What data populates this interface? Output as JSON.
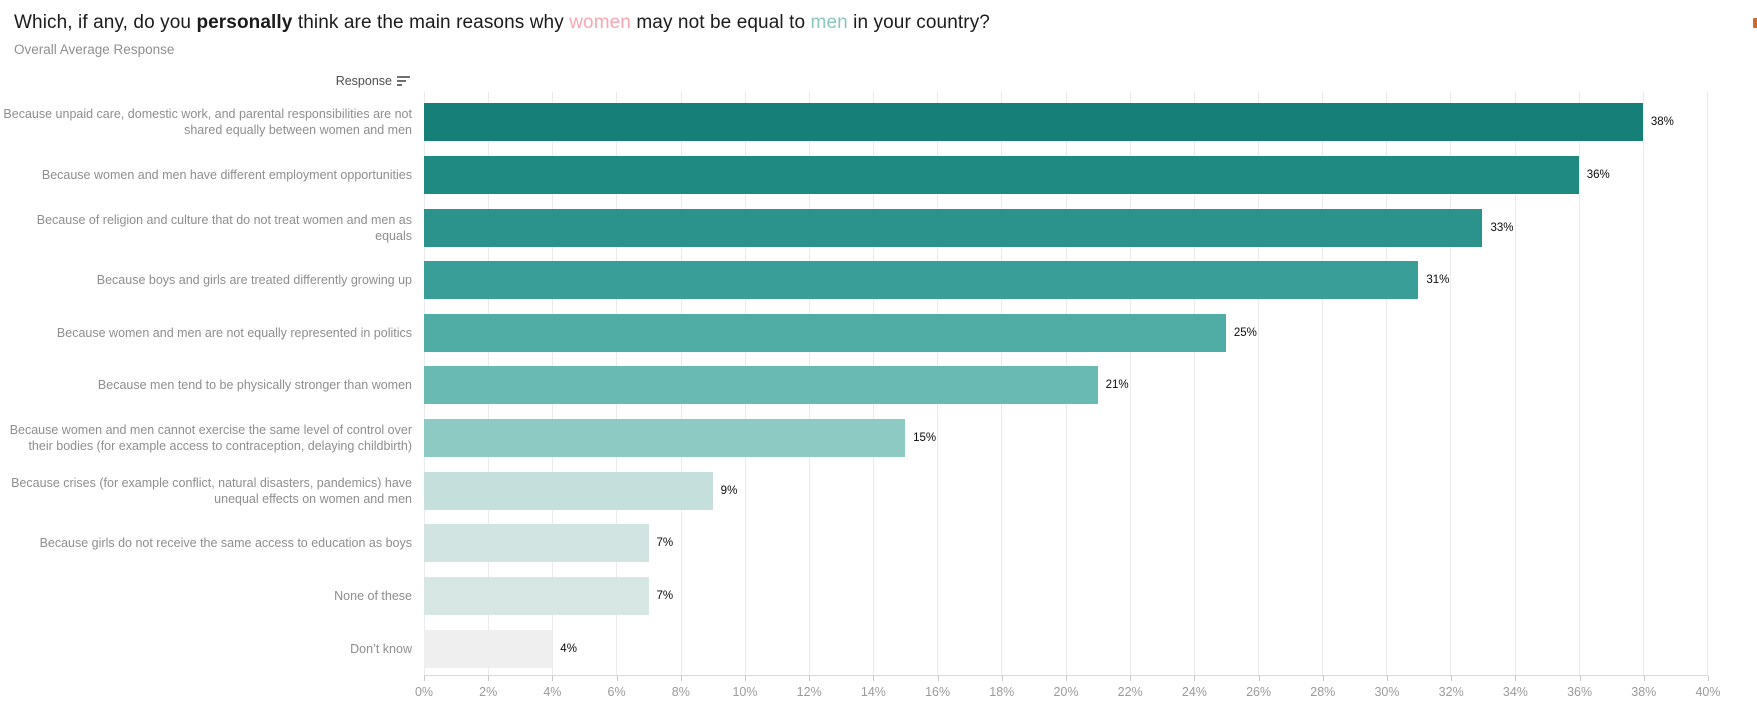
{
  "title": {
    "part1": "Which, if any, do you ",
    "personally": "personally",
    "part2": " think are the main reasons why ",
    "women": "women",
    "part3": " may not be equal to ",
    "men": "men",
    "part4": " in your country?"
  },
  "subtitle": "Overall Average Response",
  "column_header": {
    "label": "Response"
  },
  "chart_data": {
    "type": "bar",
    "orientation": "horizontal",
    "title": "Which, if any, do you personally think are the main reasons why women may not be equal to men in your country?",
    "subtitle": "Overall Average Response",
    "ylabel": "Response",
    "xlabel": "",
    "xlim": [
      0,
      40
    ],
    "x_ticks": [
      "0%",
      "2%",
      "4%",
      "6%",
      "8%",
      "10%",
      "12%",
      "14%",
      "16%",
      "18%",
      "20%",
      "22%",
      "24%",
      "26%",
      "28%",
      "30%",
      "32%",
      "34%",
      "36%",
      "38%",
      "40%"
    ],
    "grid": "vertical gridlines every 2%",
    "legend": "none",
    "categories": [
      "Because unpaid care, domestic work, and parental responsibilities are not shared equally between women and men",
      "Because women and men have different employment opportunities",
      "Because of religion and culture that do not treat women and men as equals",
      "Because boys and girls are treated differently growing up",
      "Because women and men are not equally represented in politics",
      "Because men tend to be physically stronger than women",
      "Because women and men cannot exercise the same level of control over their bodies (for example access to contraception, delaying childbirth)",
      "Because crises (for example conflict, natural disasters, pandemics) have unequal effects on women and men",
      "Because girls do not receive the same access to education as boys",
      "None of these",
      "Don’t know"
    ],
    "values": [
      38,
      36,
      33,
      31,
      25,
      21,
      15,
      9,
      7,
      7,
      4
    ],
    "value_labels": [
      "38%",
      "36%",
      "33%",
      "31%",
      "25%",
      "21%",
      "15%",
      "9%",
      "7%",
      "7%",
      "4%"
    ],
    "bar_colors": [
      "#157f78",
      "#1e8a82",
      "#2b938b",
      "#389e97",
      "#4fada5",
      "#69bab2",
      "#8ecac4",
      "#c5dfdc",
      "#d2e4e1",
      "#d7e7e4",
      "#efefef"
    ]
  },
  "colors": {
    "women_highlight": "#f8a6b0",
    "men_highlight": "#8cc5bf",
    "title_text": "#1b1b1b",
    "subtitle_text": "#8f8f8f",
    "category_label": "#8e8e8e",
    "axis_label": "#9b9b9b",
    "value_label": "#0a0a0a",
    "gridline": "#ebebeb",
    "top_right_fragment": "#cf6d28"
  }
}
